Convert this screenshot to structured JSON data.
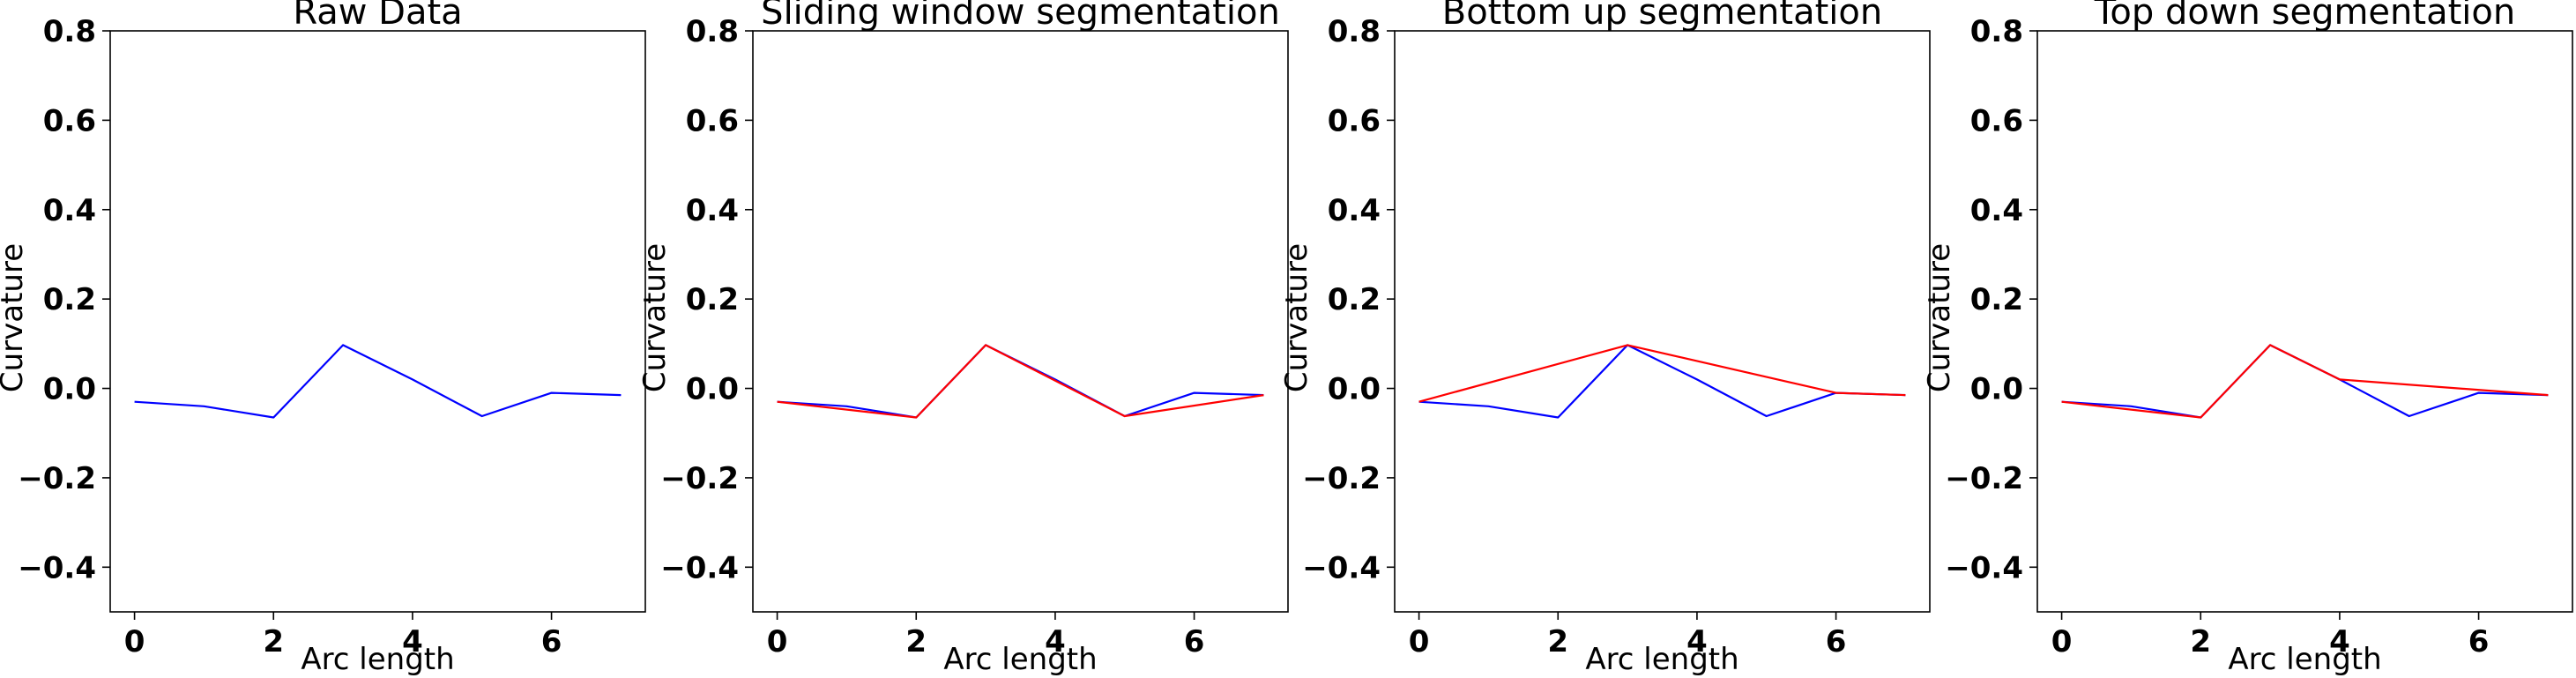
{
  "chart_data": [
    {
      "type": "line",
      "title": "Raw Data",
      "xlabel": "Arc length",
      "ylabel": "Curvature",
      "xlim": [
        -0.35,
        7.35
      ],
      "ylim": [
        -0.5,
        0.8
      ],
      "xticks": [
        0,
        2,
        4,
        6
      ],
      "xtick_labels": [
        "0",
        "2",
        "4",
        "6"
      ],
      "yticks": [
        -0.4,
        -0.2,
        0.0,
        0.2,
        0.4,
        0.6,
        0.8
      ],
      "ytick_labels": [
        "−0.4",
        "−0.2",
        "0.0",
        "0.2",
        "0.4",
        "0.6",
        "0.8"
      ],
      "grid": false,
      "series": [
        {
          "color": "#0000ff",
          "x": [
            0,
            1,
            2,
            3,
            4,
            5,
            6,
            7
          ],
          "y": [
            -0.03,
            -0.04,
            -0.065,
            0.097,
            0.02,
            -0.062,
            -0.01,
            -0.015
          ]
        }
      ]
    },
    {
      "type": "line",
      "title": "Sliding window segmentation",
      "xlabel": "Arc length",
      "ylabel": "Curvature",
      "xlim": [
        -0.35,
        7.35
      ],
      "ylim": [
        -0.5,
        0.8
      ],
      "xticks": [
        0,
        2,
        4,
        6
      ],
      "xtick_labels": [
        "0",
        "2",
        "4",
        "6"
      ],
      "yticks": [
        -0.4,
        -0.2,
        0.0,
        0.2,
        0.4,
        0.6,
        0.8
      ],
      "ytick_labels": [
        "−0.4",
        "−0.2",
        "0.0",
        "0.2",
        "0.4",
        "0.6",
        "0.8"
      ],
      "grid": false,
      "series": [
        {
          "color": "#0000ff",
          "x": [
            0,
            1,
            2,
            3,
            4,
            5,
            6,
            7
          ],
          "y": [
            -0.03,
            -0.04,
            -0.065,
            0.097,
            0.02,
            -0.062,
            -0.01,
            -0.015
          ]
        },
        {
          "color": "#ff0000",
          "x": [
            0,
            2,
            3,
            5,
            7
          ],
          "y": [
            -0.03,
            -0.065,
            0.097,
            -0.062,
            -0.015
          ]
        }
      ]
    },
    {
      "type": "line",
      "title": "Bottom up segmentation",
      "xlabel": "Arc length",
      "ylabel": "Curvature",
      "xlim": [
        -0.35,
        7.35
      ],
      "ylim": [
        -0.5,
        0.8
      ],
      "xticks": [
        0,
        2,
        4,
        6
      ],
      "xtick_labels": [
        "0",
        "2",
        "4",
        "6"
      ],
      "yticks": [
        -0.4,
        -0.2,
        0.0,
        0.2,
        0.4,
        0.6,
        0.8
      ],
      "ytick_labels": [
        "−0.4",
        "−0.2",
        "0.0",
        "0.2",
        "0.4",
        "0.6",
        "0.8"
      ],
      "grid": false,
      "series": [
        {
          "color": "#0000ff",
          "x": [
            0,
            1,
            2,
            3,
            4,
            5,
            6,
            7
          ],
          "y": [
            -0.03,
            -0.04,
            -0.065,
            0.097,
            0.02,
            -0.062,
            -0.01,
            -0.015
          ]
        },
        {
          "color": "#ff0000",
          "x": [
            0,
            3,
            6,
            7
          ],
          "y": [
            -0.03,
            0.097,
            -0.01,
            -0.015
          ]
        }
      ]
    },
    {
      "type": "line",
      "title": "Top down segmentation",
      "xlabel": "Arc length",
      "ylabel": "Curvature",
      "xlim": [
        -0.35,
        7.35
      ],
      "ylim": [
        -0.5,
        0.8
      ],
      "xticks": [
        0,
        2,
        4,
        6
      ],
      "xtick_labels": [
        "0",
        "2",
        "4",
        "6"
      ],
      "yticks": [
        -0.4,
        -0.2,
        0.0,
        0.2,
        0.4,
        0.6,
        0.8
      ],
      "ytick_labels": [
        "−0.4",
        "−0.2",
        "0.0",
        "0.2",
        "0.4",
        "0.6",
        "0.8"
      ],
      "grid": false,
      "series": [
        {
          "color": "#0000ff",
          "x": [
            0,
            1,
            2,
            3,
            4,
            5,
            6,
            7
          ],
          "y": [
            -0.03,
            -0.04,
            -0.065,
            0.097,
            0.02,
            -0.062,
            -0.01,
            -0.015
          ]
        },
        {
          "color": "#ff0000",
          "x": [
            0,
            2,
            3,
            4,
            7
          ],
          "y": [
            -0.03,
            -0.065,
            0.097,
            0.02,
            -0.015
          ]
        }
      ]
    }
  ]
}
